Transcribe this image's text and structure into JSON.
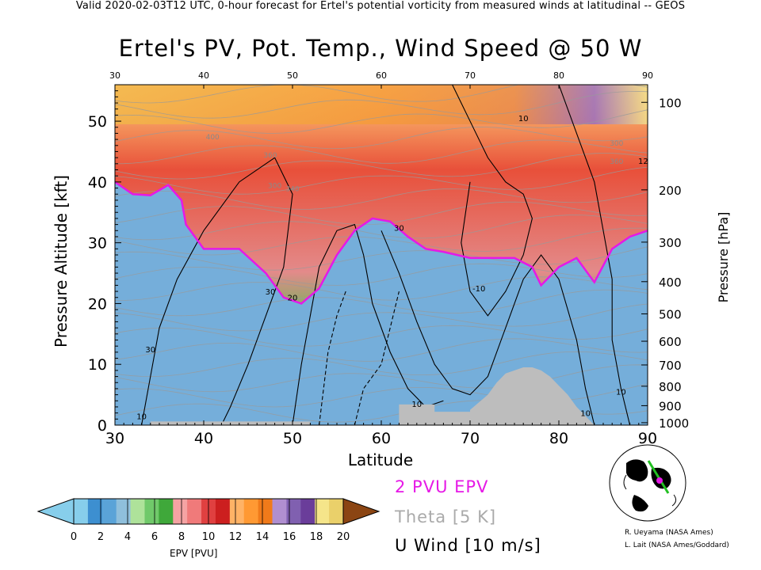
{
  "header": "Valid 2020-02-03T12 UTC, 0-hour forecast for Ertel's potential vorticity from measured winds at latitudinal -- GEOS",
  "title": "Ertel's PV, Pot. Temp., Wind Speed @ 50 W",
  "legend": {
    "epv": "2 PVU EPV",
    "theta": "Theta [5 K]",
    "uwind": "U Wind [10 m/s]"
  },
  "colorbar": {
    "title": "EPV [PVU]",
    "ticks": [
      "0",
      "2",
      "4",
      "6",
      "8",
      "10",
      "12",
      "14",
      "16",
      "18",
      "20"
    ],
    "colors": [
      "#87ceeb",
      "#3d8fd0",
      "#5aa3d8",
      "#8fbfdc",
      "#aee29a",
      "#70c96a",
      "#3fa83a",
      "#f5a3a3",
      "#f07a7a",
      "#e04040",
      "#cc1f1f",
      "#ffb366",
      "#ff9933",
      "#f07a1a",
      "#b08fd0",
      "#8060b0",
      "#6a3d9a",
      "#f5e58a",
      "#ead06a"
    ],
    "under_color": "#87ceeb",
    "over_color": "#8b4513"
  },
  "credits": [
    "R. Ueyama (NASA Ames)",
    "L. Lait (NASA Ames/Goddard)"
  ],
  "chart_data": {
    "type": "heatmap",
    "title": "Ertel's PV, Pot. Temp., Wind Speed @ 50 W",
    "xlabel": "Latitude",
    "ylabel": "Pressure Altitude [kft]",
    "y2label": "Pressure [hPa]",
    "xlim": [
      30,
      90
    ],
    "ylim": [
      0,
      56
    ],
    "x_ticks": [
      30,
      40,
      50,
      60,
      70,
      80,
      90
    ],
    "top_x_ticks": [
      30,
      40,
      50,
      60,
      70,
      80,
      90
    ],
    "y_ticks": [
      0,
      10,
      20,
      30,
      40,
      50
    ],
    "pressure_ticks": [
      {
        "hPa": 100,
        "kft": 53.1
      },
      {
        "hPa": 200,
        "kft": 38.7
      },
      {
        "hPa": 300,
        "kft": 30.1
      },
      {
        "hPa": 400,
        "kft": 23.6
      },
      {
        "hPa": 500,
        "kft": 18.3
      },
      {
        "hPa": 600,
        "kft": 13.8
      },
      {
        "hPa": 700,
        "kft": 9.9
      },
      {
        "hPa": 800,
        "kft": 6.4
      },
      {
        "hPa": 900,
        "kft": 3.2
      },
      {
        "hPa": 1000,
        "kft": 0.4
      }
    ],
    "pv2_boundary": [
      [
        30,
        40
      ],
      [
        32,
        38
      ],
      [
        34,
        37.8
      ],
      [
        36,
        39.5
      ],
      [
        37.5,
        37
      ],
      [
        38,
        33
      ],
      [
        40,
        29
      ],
      [
        44,
        29
      ],
      [
        47,
        25
      ],
      [
        49,
        21
      ],
      [
        51,
        20
      ],
      [
        53,
        22.5
      ],
      [
        55,
        28
      ],
      [
        57,
        32
      ],
      [
        59,
        34
      ],
      [
        61,
        33.5
      ],
      [
        63,
        31
      ],
      [
        65,
        29
      ],
      [
        67,
        28.5
      ],
      [
        70,
        27.5
      ],
      [
        73,
        27.5
      ],
      [
        75,
        27.5
      ],
      [
        77,
        26
      ],
      [
        78,
        23
      ],
      [
        80,
        26
      ],
      [
        82,
        27.5
      ],
      [
        84,
        23.5
      ],
      [
        86,
        29
      ],
      [
        88,
        31
      ],
      [
        90,
        32
      ]
    ],
    "wind_contour_labels": [
      {
        "label": "10",
        "x": 33,
        "y": 1
      },
      {
        "label": "30",
        "x": 34,
        "y": 12
      },
      {
        "label": "30",
        "x": 47.5,
        "y": 21.5
      },
      {
        "label": "20",
        "x": 50,
        "y": 20.5
      },
      {
        "label": "30",
        "x": 62,
        "y": 32
      },
      {
        "label": "10",
        "x": 64,
        "y": 3
      },
      {
        "label": "-10",
        "x": 71,
        "y": 22
      },
      {
        "label": "10",
        "x": 76,
        "y": 50
      },
      {
        "label": "10",
        "x": 83,
        "y": 1.5
      },
      {
        "label": "10",
        "x": 87,
        "y": 5
      },
      {
        "label": "12",
        "x": 89.5,
        "y": 43
      }
    ],
    "theta_contour_labels": [
      {
        "label": "400",
        "x": 41,
        "y": 47
      },
      {
        "label": "360",
        "x": 47.5,
        "y": 44
      },
      {
        "label": "300",
        "x": 48,
        "y": 39
      },
      {
        "label": "340",
        "x": 50,
        "y": 38.5
      },
      {
        "label": "300",
        "x": 86.5,
        "y": 46
      },
      {
        "label": "360",
        "x": 86.5,
        "y": 43
      }
    ],
    "terrain_lat_ranges": [
      [
        34,
        52
      ],
      [
        62,
        66
      ],
      [
        66,
        70
      ],
      [
        72,
        84
      ]
    ]
  }
}
